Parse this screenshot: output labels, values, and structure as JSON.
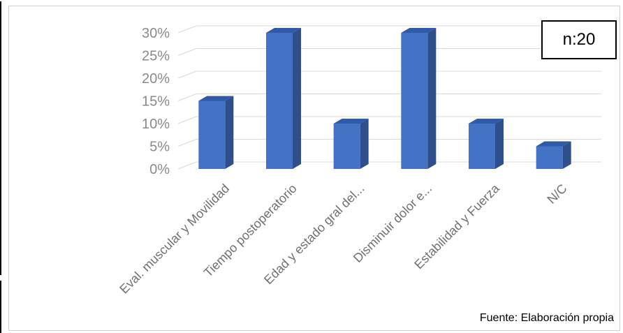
{
  "chart_data": {
    "type": "bar",
    "categories": [
      "Eval. muscular y Movilidad",
      "Tiempo postoperatorio",
      "Edad y estado gral del...",
      "Disminuir dolor e...",
      "Estabilidad y Fuerza",
      "N/C"
    ],
    "series": [
      {
        "values": [
          15,
          30,
          10,
          30,
          10,
          5
        ]
      }
    ],
    "yticks": [
      "0%",
      "5%",
      "10%",
      "15%",
      "20%",
      "25%",
      "30%"
    ],
    "ylim": [
      0,
      30
    ],
    "y_unit": "%",
    "grid": true,
    "style": "3d-column",
    "colors": {
      "bar_front": "#4472c4",
      "bar_side": "#2f4f8c",
      "bar_top": "#2e5aa8",
      "grid": "#d9d9d9"
    }
  },
  "annotations": {
    "sample_size": "n:20",
    "source": "Fuente: Elaboración propia"
  }
}
